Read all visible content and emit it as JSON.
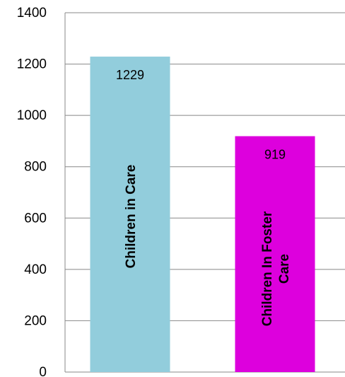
{
  "chart_data": {
    "type": "bar",
    "categories": [
      [
        "Children in Care"
      ],
      [
        "Children In Foster",
        "Care"
      ]
    ],
    "values": [
      1229,
      919
    ],
    "data_labels": [
      "1229",
      "919"
    ],
    "ylim": [
      0,
      1400
    ],
    "yticks": [
      "0",
      "200",
      "400",
      "600",
      "800",
      "1000",
      "1200",
      "1400"
    ],
    "grid": true,
    "colors": [
      "#92cddc",
      "#dd00dd"
    ]
  }
}
